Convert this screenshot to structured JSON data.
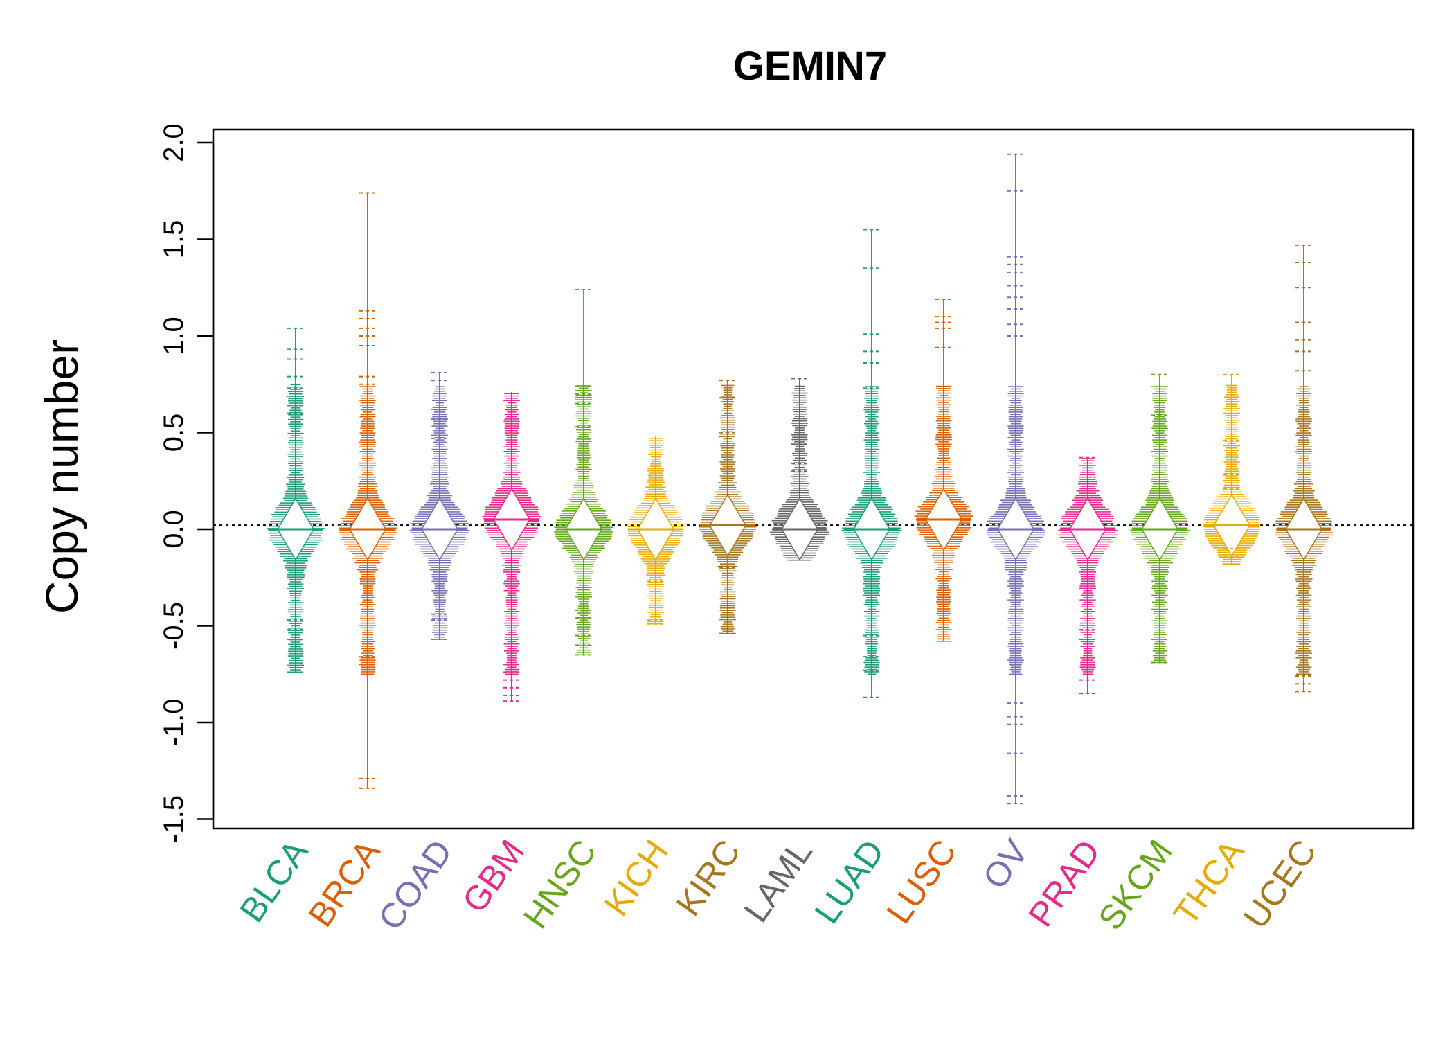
{
  "chart_data": {
    "type": "beanplot",
    "title": "GEMIN7",
    "xlabel": "",
    "ylabel": "Copy number",
    "ylim": [
      -1.5,
      2.0
    ],
    "yticks": [
      "2.0",
      "1.5",
      "1.0",
      "0.5",
      "0.0",
      "-0.5",
      "-1.0",
      "-1.5"
    ],
    "ytick_values": [
      2.0,
      1.5,
      1.0,
      0.5,
      0.0,
      -0.5,
      -1.0,
      -1.5
    ],
    "reference_line": 0.02,
    "categories": [
      "BLCA",
      "BRCA",
      "COAD",
      "GBM",
      "HNSC",
      "KICH",
      "KIRC",
      "LAML",
      "LUAD",
      "LUSC",
      "OV",
      "PRAD",
      "SKCM",
      "THCA",
      "UCEC"
    ],
    "series": [
      {
        "category": "BLCA",
        "color": "#1b9e77",
        "min": -0.74,
        "max": 1.04,
        "median": 0.0,
        "outliers": [
          1.04,
          0.93,
          0.88,
          0.79,
          0.73,
          0.64,
          0.6,
          -0.47,
          -0.52,
          -0.57,
          -0.74
        ]
      },
      {
        "category": "BRCA",
        "color": "#d95f02",
        "min": -1.34,
        "max": 1.74,
        "median": 0.0,
        "outliers": [
          1.74,
          1.13,
          1.09,
          1.04,
          1.0,
          0.95,
          0.79,
          0.75,
          -0.66,
          -0.7,
          -1.29,
          -1.34
        ]
      },
      {
        "category": "COAD",
        "color": "#7570b3",
        "min": -0.57,
        "max": 0.81,
        "median": 0.0,
        "outliers": [
          0.81,
          0.77,
          0.62,
          0.57,
          0.47,
          -0.44,
          -0.47,
          -0.57
        ]
      },
      {
        "category": "GBM",
        "color": "#e7298a",
        "min": -0.89,
        "max": 0.71,
        "median": 0.05,
        "outliers": [
          -0.7,
          -0.74,
          -0.78,
          -0.82,
          -0.86,
          -0.89
        ]
      },
      {
        "category": "HNSC",
        "color": "#66a61e",
        "min": -0.65,
        "max": 1.24,
        "median": 0.0,
        "outliers": [
          1.24,
          0.74,
          0.7,
          0.65,
          0.53,
          -0.42,
          -0.46,
          -0.55,
          -0.6,
          -0.65
        ]
      },
      {
        "category": "KICH",
        "color": "#e6ab02",
        "min": -0.49,
        "max": 0.48,
        "median": 0.0,
        "outliers": [
          -0.17,
          -0.27,
          -0.47,
          -0.49
        ]
      },
      {
        "category": "KIRC",
        "color": "#a6761d",
        "min": -0.54,
        "max": 0.77,
        "median": 0.02,
        "outliers": [
          0.77,
          0.68,
          0.5,
          0.48,
          -0.2,
          -0.54
        ]
      },
      {
        "category": "LAML",
        "color": "#666666",
        "min": -0.16,
        "max": 0.78,
        "median": 0.0,
        "outliers": [
          0.78,
          0.49,
          0.44,
          0.34,
          0.3
        ]
      },
      {
        "category": "LUAD",
        "color": "#1b9e77",
        "min": -0.87,
        "max": 1.55,
        "median": 0.0,
        "outliers": [
          1.55,
          1.35,
          1.01,
          0.92,
          0.86,
          0.73,
          -0.55,
          -0.66,
          -0.73,
          -0.87
        ]
      },
      {
        "category": "LUSC",
        "color": "#d95f02",
        "min": -0.58,
        "max": 1.19,
        "median": 0.05,
        "outliers": [
          1.19,
          1.1,
          1.07,
          1.04,
          0.94
        ]
      },
      {
        "category": "OV",
        "color": "#7570b3",
        "min": -1.42,
        "max": 1.94,
        "median": 0.0,
        "outliers": [
          1.94,
          1.75,
          1.41,
          1.37,
          1.33,
          1.26,
          1.2,
          1.14,
          1.06,
          1.0,
          -0.9,
          -0.97,
          -1.01,
          -1.16,
          -1.38,
          -1.42
        ]
      },
      {
        "category": "PRAD",
        "color": "#e7298a",
        "min": -0.85,
        "max": 0.37,
        "median": 0.0,
        "outliers": [
          0.37,
          -0.52,
          -0.57,
          -0.78,
          -0.85
        ]
      },
      {
        "category": "SKCM",
        "color": "#66a61e",
        "min": -0.69,
        "max": 0.8,
        "median": 0.0,
        "outliers": [
          0.8,
          0.59,
          -0.57,
          -0.69
        ]
      },
      {
        "category": "THCA",
        "color": "#e6ab02",
        "min": -0.18,
        "max": 0.8,
        "median": 0.02,
        "outliers": [
          0.8,
          0.46,
          0.28,
          0.25,
          0.21,
          -0.1,
          -0.14,
          -0.18
        ]
      },
      {
        "category": "UCEC",
        "color": "#a6761d",
        "min": -0.84,
        "max": 1.47,
        "median": 0.0,
        "outliers": [
          1.47,
          1.38,
          1.25,
          1.07,
          0.98,
          0.92,
          0.82,
          -0.76,
          -0.8,
          -0.84
        ]
      }
    ]
  }
}
